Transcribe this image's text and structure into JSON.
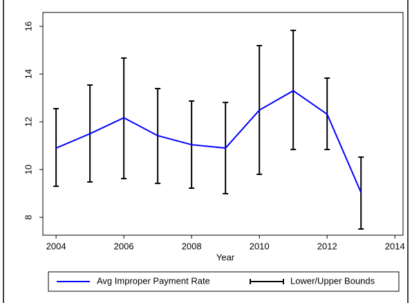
{
  "chart_data": {
    "type": "line",
    "x_label": "Year",
    "x": [
      2004,
      2005,
      2006,
      2007,
      2008,
      2009,
      2010,
      2011,
      2012,
      2013
    ],
    "series": [
      {
        "name": "Avg Improper Payment Rate",
        "color": "#0000ff",
        "values": [
          10.9,
          11.5,
          12.17,
          11.42,
          11.04,
          10.9,
          12.49,
          13.3,
          12.32,
          9.04
        ]
      }
    ],
    "bounds": {
      "name": "Lower/Upper Bounds",
      "color": "#000000",
      "lower": [
        9.3,
        9.48,
        9.62,
        9.42,
        9.22,
        8.99,
        9.8,
        10.84,
        10.84,
        7.51
      ],
      "upper": [
        12.55,
        13.54,
        14.67,
        13.39,
        12.87,
        12.81,
        15.19,
        15.83,
        13.83,
        10.52
      ]
    },
    "xlim": [
      2003.61,
      2014.24
    ],
    "xticks": [
      2004,
      2006,
      2008,
      2010,
      2012,
      2014
    ],
    "ylim": [
      7.25,
      16.58
    ],
    "yticks": [
      8,
      10,
      12,
      14,
      16
    ],
    "grid": false,
    "legend": "bottom"
  }
}
